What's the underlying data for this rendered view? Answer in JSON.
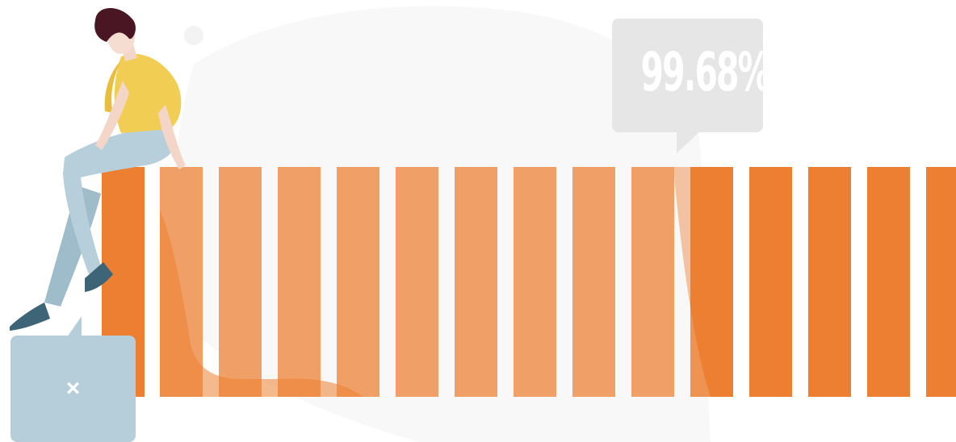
{
  "progress": {
    "percent_label": "99.68%",
    "value_percent": 99.68
  },
  "close_button": {
    "icon": "close-icon",
    "glyph": "×"
  },
  "colors": {
    "bar_dark": "#ec7f32",
    "bar_light": "#f0a067",
    "bubble": "#e6e6e6",
    "close_box": "#b5ced9"
  }
}
